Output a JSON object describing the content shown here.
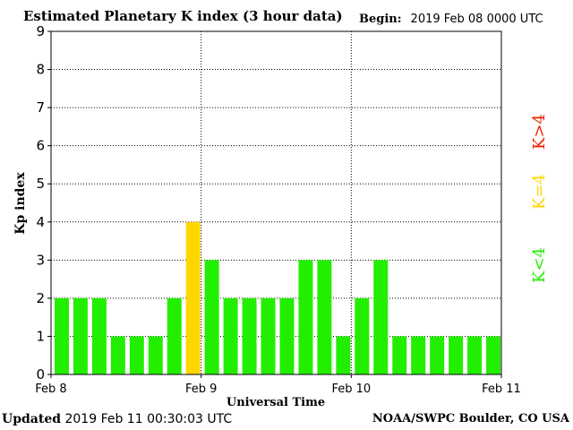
{
  "header": {
    "title": "Estimated Planetary K index (3 hour data)",
    "begin_label": "Begin:",
    "begin_value": "2019 Feb 08 0000 UTC"
  },
  "footer": {
    "updated_label": "Updated",
    "updated_value": "2019 Feb 11 00:30:03 UTC",
    "credit": "NOAA/SWPC Boulder, CO USA"
  },
  "legend": [
    {
      "label": "K<4",
      "color": "#22ee00"
    },
    {
      "label": "K=4",
      "color": "#ffd700"
    },
    {
      "label": "K>4",
      "color": "#ee2200"
    }
  ],
  "chart_data": {
    "type": "bar",
    "title": "Estimated Planetary K index (3 hour data)",
    "xlabel": "Universal Time",
    "ylabel": "Kp index",
    "ylim": [
      0,
      9
    ],
    "yticks": [
      0,
      1,
      2,
      3,
      4,
      5,
      6,
      7,
      8,
      9
    ],
    "xtick_labels": [
      "Feb 8",
      "Feb 9",
      "Feb 10",
      "Feb 11"
    ],
    "interval_hours": 3,
    "values": [
      2,
      2,
      2,
      1,
      1,
      1,
      2,
      4,
      3,
      2,
      2,
      2,
      2,
      3,
      3,
      1,
      2,
      3,
      1,
      1,
      1,
      1,
      1,
      1
    ],
    "colors": {
      "below4": "#22ee00",
      "equal4": "#ffd700",
      "above4": "#ee2200"
    },
    "grid": true
  }
}
